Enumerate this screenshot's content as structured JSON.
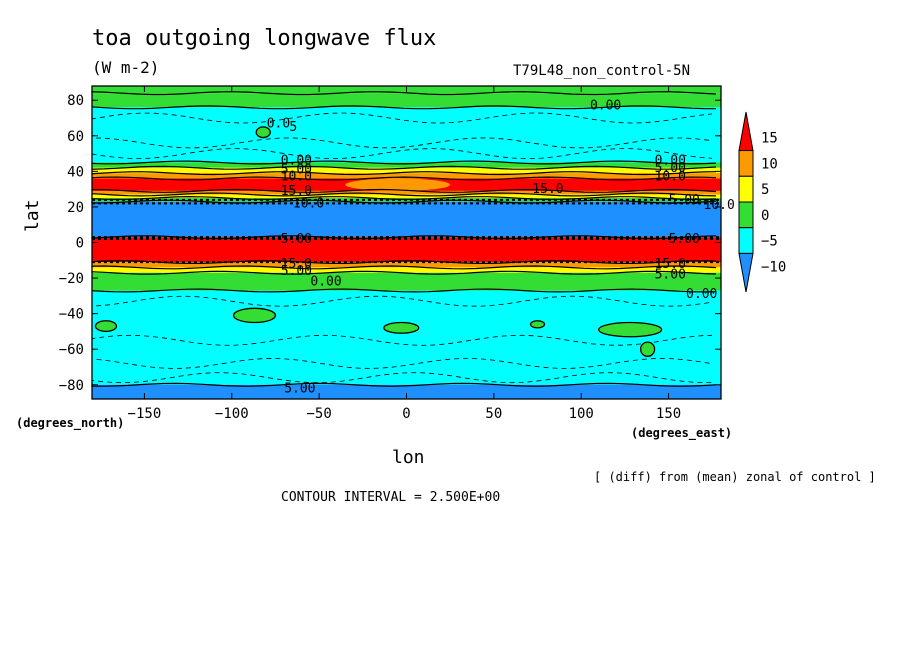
{
  "chart_data": {
    "type": "heatmap",
    "title": "toa outgoing longwave flux",
    "units": "(W m-2)",
    "run_label": "T79L48_non_control-5N",
    "xlabel": "lon",
    "ylabel": "lat",
    "xunit_label": "(degrees_east)",
    "yunit_label": "(degrees_north)",
    "note": "[ (diff) from (mean) zonal of control ]",
    "contour_interval_text": "CONTOUR INTERVAL = 2.500E+00",
    "xlim": [
      -180,
      180
    ],
    "ylim": [
      -88,
      88
    ],
    "xticks": [
      -150,
      -100,
      -50,
      0,
      50,
      100,
      150
    ],
    "xtick_labels": [
      "−150",
      "−100",
      "−50",
      "0",
      "50",
      "100",
      "150"
    ],
    "yticks": [
      80,
      60,
      40,
      20,
      0,
      -20,
      -40,
      -60,
      -80
    ],
    "ytick_labels": [
      "80",
      "60",
      "40",
      "20",
      "0",
      "−20",
      "−40",
      "−60",
      "−80"
    ],
    "colorbar": {
      "levels": [
        15,
        10,
        5,
        0,
        -5,
        -10
      ],
      "labels": [
        "15",
        "10",
        "5",
        "0",
        "−5",
        "−10"
      ],
      "colors": [
        "#ff0000",
        "#ff9900",
        "#ffff00",
        "#33dd33",
        "#00ffff",
        "#1e90ff"
      ]
    },
    "zonal_bands": [
      {
        "lat_top": 88,
        "lat_bottom": 84,
        "color": "#33dd33"
      },
      {
        "lat_top": 84,
        "lat_bottom": 76,
        "color": "#33dd33"
      },
      {
        "lat_top": 76,
        "lat_bottom": 45,
        "color": "#00ffff"
      },
      {
        "lat_top": 45,
        "lat_bottom": 42,
        "color": "#33dd33"
      },
      {
        "lat_top": 42,
        "lat_bottom": 39,
        "color": "#ffff00"
      },
      {
        "lat_top": 39,
        "lat_bottom": 36,
        "color": "#ff9900"
      },
      {
        "lat_top": 36,
        "lat_bottom": 29,
        "color": "#ff0000"
      },
      {
        "lat_top": 29,
        "lat_bottom": 27,
        "color": "#ff9900"
      },
      {
        "lat_top": 27,
        "lat_bottom": 25,
        "color": "#ffff00"
      },
      {
        "lat_top": 25,
        "lat_bottom": 23,
        "color": "#33dd33"
      },
      {
        "lat_top": 23,
        "lat_bottom": 3,
        "color": "#1e90ff"
      },
      {
        "lat_top": 3,
        "lat_bottom": -11,
        "color": "#ff0000"
      },
      {
        "lat_top": -11,
        "lat_bottom": -14,
        "color": "#ff9900"
      },
      {
        "lat_top": -14,
        "lat_bottom": -17,
        "color": "#ffff00"
      },
      {
        "lat_top": -17,
        "lat_bottom": -27,
        "color": "#33dd33"
      },
      {
        "lat_top": -27,
        "lat_bottom": -80,
        "color": "#00ffff"
      },
      {
        "lat_top": -80,
        "lat_bottom": -88,
        "color": "#1e90ff"
      }
    ],
    "orange_patch": {
      "lon_start": -35,
      "lon_end": 25,
      "lat_top": 36,
      "lat_bottom": 29,
      "color": "#ff9900"
    },
    "green_patches": [
      {
        "lon": -87,
        "lat": -41,
        "rx": 12,
        "ry": 4
      },
      {
        "lon": -172,
        "lat": -47,
        "rx": 6,
        "ry": 3
      },
      {
        "lon": -3,
        "lat": -48,
        "rx": 10,
        "ry": 3
      },
      {
        "lon": 75,
        "lat": -46,
        "rx": 4,
        "ry": 2
      },
      {
        "lon": 128,
        "lat": -49,
        "rx": 18,
        "ry": 4
      },
      {
        "lon": 138,
        "lat": -60,
        "rx": 4,
        "ry": 4
      },
      {
        "lon": -82,
        "lat": 62,
        "rx": 4,
        "ry": 3
      }
    ],
    "contour_labels": [
      {
        "text": "0.00",
        "lon": 105,
        "lat": 77
      },
      {
        "text": "0.0",
        "lon": -80,
        "lat": 67
      },
      {
        "text": "5",
        "lon": -67,
        "lat": 65
      },
      {
        "text": "0.00",
        "lon": -72,
        "lat": 46
      },
      {
        "text": "5.00",
        "lon": -72,
        "lat": 41
      },
      {
        "text": "10.0",
        "lon": -72,
        "lat": 37
      },
      {
        "text": "0.00",
        "lon": 142,
        "lat": 46
      },
      {
        "text": "5.00",
        "lon": 142,
        "lat": 42
      },
      {
        "text": "10.0",
        "lon": 142,
        "lat": 37
      },
      {
        "text": "15.0",
        "lon": 72,
        "lat": 30
      },
      {
        "text": "15.0",
        "lon": -72,
        "lat": 29
      },
      {
        "text": "10.0",
        "lon": -65,
        "lat": 22
      },
      {
        "text": "5.00",
        "lon": 150,
        "lat": 24
      },
      {
        "text": "10.0",
        "lon": 170,
        "lat": 21
      },
      {
        "text": "5.00",
        "lon": -72,
        "lat": 2
      },
      {
        "text": "5.00",
        "lon": 150,
        "lat": 2
      },
      {
        "text": "15.0",
        "lon": -72,
        "lat": -12
      },
      {
        "text": "5.00",
        "lon": -72,
        "lat": -16
      },
      {
        "text": "0.00",
        "lon": -55,
        "lat": -22
      },
      {
        "text": "15.0",
        "lon": 142,
        "lat": -12
      },
      {
        "text": "5.00",
        "lon": 142,
        "lat": -18
      },
      {
        "text": "0.00",
        "lon": 160,
        "lat": -29
      },
      {
        "text": "5.00",
        "lon": -70,
        "lat": -82
      }
    ]
  }
}
